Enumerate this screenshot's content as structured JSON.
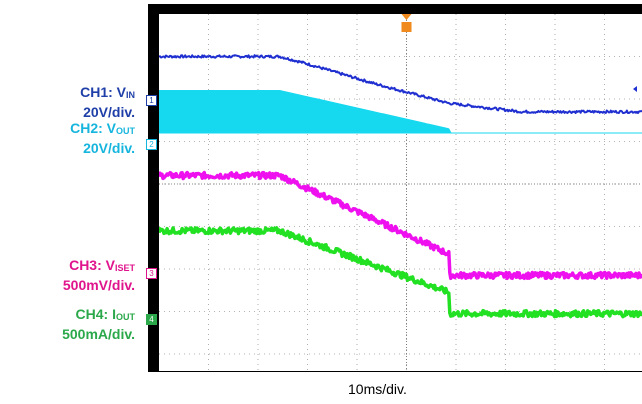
{
  "labels": {
    "ch1": {
      "name": "CH1: V",
      "sub": "IN",
      "scale": "20V/div.",
      "color": "#1f3fa8"
    },
    "ch2": {
      "name": "CH2: V",
      "sub": "OUT",
      "scale": "20V/div.",
      "color": "#16b5dd"
    },
    "ch3": {
      "name": "CH3: V",
      "sub": "ISET",
      "scale": "500mV/div.",
      "color": "#e0148c"
    },
    "ch4": {
      "name": "CH4: I",
      "sub": "OUT",
      "scale": "500mA/div.",
      "color": "#2aa84a"
    }
  },
  "markers": {
    "ch1": "1",
    "ch2": "2",
    "ch3": "3",
    "ch4": "4",
    "trigger": "T"
  },
  "timebase": "10ms/div.",
  "chart_data": {
    "type": "line",
    "title": "",
    "xlabel": "10ms/div.",
    "ylabel": "",
    "grid": true,
    "xlim": [
      0,
      10
    ],
    "ylim": [
      -4,
      4
    ],
    "series": [
      {
        "name": "CH1: VIN",
        "color": "#1f2fd0",
        "noise": 0.03,
        "x": [
          0,
          2.5,
          3.0,
          4.5,
          6.0,
          7.5,
          10
        ],
        "y": [
          3.0,
          3.0,
          2.85,
          2.35,
          1.9,
          1.7,
          1.7
        ]
      },
      {
        "name": "CH2: VOUT",
        "color": "#16d8ee",
        "band": true,
        "base": 1.2,
        "x": [
          0,
          2.5,
          6.0,
          6.02,
          10
        ],
        "y": [
          2.2,
          2.2,
          1.3,
          1.2,
          1.2
        ]
      },
      {
        "name": "CH3: VISET",
        "color": "#ee10ee",
        "noise": 0.07,
        "x": [
          0,
          2.5,
          6.0,
          6.02,
          10
        ],
        "y": [
          0.2,
          0.2,
          -1.65,
          -2.15,
          -2.15
        ]
      },
      {
        "name": "CH4: IOUT",
        "color": "#22e022",
        "noise": 0.07,
        "x": [
          0,
          2.5,
          6.0,
          6.02,
          10
        ],
        "y": [
          -1.1,
          -1.1,
          -2.55,
          -3.05,
          -3.05
        ]
      }
    ]
  }
}
